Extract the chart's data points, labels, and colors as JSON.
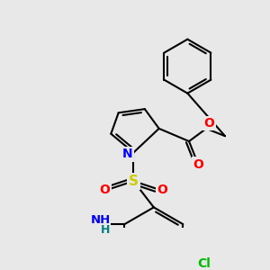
{
  "background_color": "#e8e8e8",
  "fig_size": [
    3.0,
    3.0
  ],
  "dpi": 100,
  "atom_colors": {
    "N": "#0000ff",
    "O": "#ff0000",
    "S": "#cccc00",
    "Cl": "#00bb00",
    "NH2_N": "#0000ff",
    "NH2_H": "#008080",
    "C": "#000000"
  }
}
